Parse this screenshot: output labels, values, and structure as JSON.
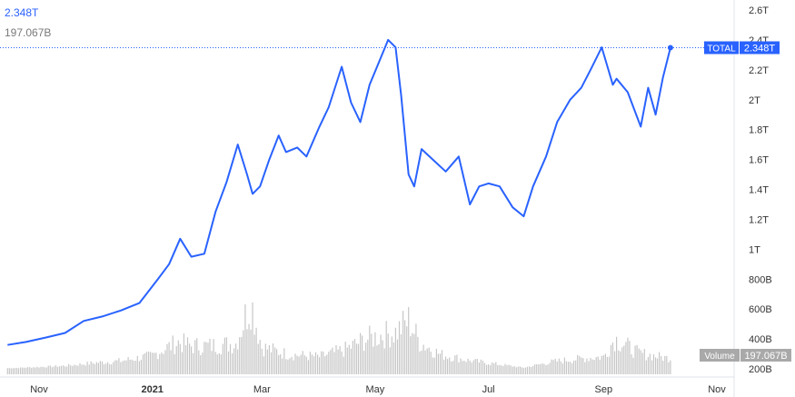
{
  "legend": {
    "value": "2.348T",
    "volume": "197.067B"
  },
  "colors": {
    "line": "#2962ff",
    "volume_bar": "#c6c6c6",
    "axis_text": "#333333",
    "axis_line": "#e0e3eb",
    "volume_label_bg": "#a9a9a9"
  },
  "chart_data": {
    "type": "line",
    "title": "",
    "series": [
      {
        "name": "TOTAL",
        "last_value": "2.348T",
        "x": [
          "2020-10-15",
          "2020-10-25",
          "2020-11-05",
          "2020-11-15",
          "2020-11-25",
          "2020-12-05",
          "2020-12-15",
          "2020-12-25",
          "2021-01-04",
          "2021-01-10",
          "2021-01-16",
          "2021-01-22",
          "2021-01-29",
          "2021-02-04",
          "2021-02-10",
          "2021-02-16",
          "2021-02-21",
          "2021-02-24",
          "2021-02-28",
          "2021-03-05",
          "2021-03-10",
          "2021-03-14",
          "2021-03-20",
          "2021-03-25",
          "2021-04-01",
          "2021-04-06",
          "2021-04-13",
          "2021-04-18",
          "2021-04-23",
          "2021-04-28",
          "2021-05-03",
          "2021-05-08",
          "2021-05-12",
          "2021-05-15",
          "2021-05-19",
          "2021-05-22",
          "2021-05-26",
          "2021-06-01",
          "2021-06-08",
          "2021-06-15",
          "2021-06-21",
          "2021-06-26",
          "2021-07-01",
          "2021-07-07",
          "2021-07-14",
          "2021-07-20",
          "2021-07-25",
          "2021-08-01",
          "2021-08-07",
          "2021-08-14",
          "2021-08-20",
          "2021-08-25",
          "2021-08-31",
          "2021-09-06",
          "2021-09-08",
          "2021-09-14",
          "2021-09-21",
          "2021-09-25",
          "2021-09-29",
          "2021-10-03",
          "2021-10-07"
        ],
        "values": [
          0.36,
          0.38,
          0.41,
          0.44,
          0.52,
          0.55,
          0.59,
          0.64,
          0.8,
          0.9,
          1.07,
          0.95,
          0.97,
          1.25,
          1.45,
          1.7,
          1.5,
          1.37,
          1.42,
          1.6,
          1.76,
          1.65,
          1.68,
          1.62,
          1.82,
          1.95,
          2.22,
          1.98,
          1.85,
          2.1,
          2.25,
          2.4,
          2.35,
          2.03,
          1.5,
          1.42,
          1.67,
          1.6,
          1.52,
          1.62,
          1.3,
          1.42,
          1.44,
          1.42,
          1.28,
          1.22,
          1.42,
          1.62,
          1.85,
          2.0,
          2.08,
          2.2,
          2.35,
          2.1,
          2.14,
          2.05,
          1.82,
          2.08,
          1.9,
          2.15,
          2.348
        ]
      }
    ],
    "volume": {
      "name": "Volume",
      "last_value": "197.067B",
      "x": [
        "2020-10-15",
        "2020-11-01",
        "2020-11-15",
        "2020-12-01",
        "2020-12-15",
        "2021-01-01",
        "2021-01-08",
        "2021-01-15",
        "2021-01-22",
        "2021-02-01",
        "2021-02-08",
        "2021-02-15",
        "2021-02-23",
        "2021-03-01",
        "2021-03-15",
        "2021-04-01",
        "2021-04-15",
        "2021-04-25",
        "2021-05-05",
        "2021-05-12",
        "2021-05-19",
        "2021-05-25",
        "2021-06-05",
        "2021-06-20",
        "2021-07-05",
        "2021-07-20",
        "2021-08-05",
        "2021-08-20",
        "2021-09-01",
        "2021-09-07",
        "2021-09-20",
        "2021-10-05"
      ],
      "values": [
        205,
        215,
        225,
        250,
        265,
        310,
        370,
        420,
        390,
        390,
        400,
        410,
        760,
        380,
        320,
        300,
        360,
        440,
        480,
        500,
        600,
        420,
        320,
        270,
        240,
        210,
        260,
        285,
        300,
        450,
        330,
        290
      ]
    },
    "x_ticks": [
      "Nov",
      "2021",
      "Mar",
      "May",
      "Jul",
      "Sep",
      "Nov"
    ],
    "x_tick_dates": [
      "2020-11-01",
      "2021-01-01",
      "2021-03-01",
      "2021-05-01",
      "2021-07-01",
      "2021-09-01",
      "2021-11-01"
    ],
    "y_ticks": [
      "2.6T",
      "2.4T",
      "2.2T",
      "2T",
      "1.8T",
      "1.6T",
      "1.4T",
      "1.2T",
      "1T",
      "800B",
      "600B",
      "400B",
      "200B"
    ],
    "y_tick_values": [
      2.6,
      2.4,
      2.2,
      2.0,
      1.8,
      1.6,
      1.4,
      1.2,
      1.0,
      0.8,
      0.6,
      0.4,
      0.2
    ],
    "ylim": [
      0.2,
      2.6
    ],
    "last_value_label": {
      "series": "TOTAL",
      "value": "2.348T"
    },
    "volume_label": {
      "series": "Volume",
      "value": "197.067B"
    },
    "grid": false
  }
}
